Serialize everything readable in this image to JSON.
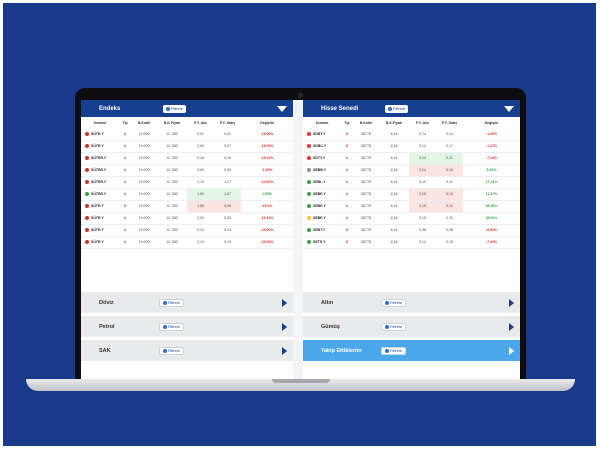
{
  "colors": {
    "background": "#1a3a8c",
    "header": "#173f90",
    "active_bar": "#4aa8ea",
    "negative": "#d62e2e",
    "positive": "#2f9e44"
  },
  "filter_label": "Filtrele",
  "left": {
    "title": "Endeks",
    "columns": [
      "Sembol",
      "Tip",
      "B.Kotik",
      "B.K.Fiyatı",
      "P.Y. Alış",
      "P.Y. Satış",
      "Değişim"
    ],
    "rows": [
      {
        "symbol": "SÜTR.Y",
        "tip": "A",
        "kotik": "10.000",
        "fiyat": "12 .362",
        "alis": "0,01",
        "satis": "0,01",
        "degisim": "-16,00%",
        "dir": "neg",
        "tipdir": "pos",
        "hl": ""
      },
      {
        "symbol": "SÜTR.Y",
        "tip": "A",
        "kotik": "10.000",
        "fiyat": "12 .362",
        "alis": "0,05",
        "satis": "0,07",
        "degisim": "-16,00%",
        "dir": "neg",
        "tipdir": "pos",
        "hl": ""
      },
      {
        "symbol": "SÜTER.Y",
        "tip": "A",
        "kotik": "10.000",
        "fiyat": "12 .362",
        "alis": "0,16",
        "satis": "0,16",
        "degisim": "-16,10%",
        "dir": "neg",
        "tipdir": "pos",
        "hl": ""
      },
      {
        "symbol": "SÜTER.Y",
        "tip": "A",
        "kotik": "10.000",
        "fiyat": "12 .362",
        "alis": "3,00",
        "satis": "0,00",
        "degisim": "-1,60%",
        "dir": "neg",
        "tipdir": "pos",
        "hl": ""
      },
      {
        "symbol": "SÜTER.Y",
        "tip": "A",
        "kotik": "10.000",
        "fiyat": "12 .362",
        "alis": "1,13",
        "satis": "1,17",
        "degisim": "-10,60%",
        "dir": "neg",
        "tipdir": "pos",
        "hl": ""
      },
      {
        "symbol": "SÜTER.Y",
        "tip": "A",
        "kotik": "10.000",
        "fiyat": "12 .362",
        "alis": "1,60",
        "satis": "1,67",
        "degisim": "1,05%",
        "dir": "pos",
        "tipdir": "pos",
        "hl": "green"
      },
      {
        "symbol": "SÜTR.Y",
        "tip": "S",
        "kotik": "10.000",
        "fiyat": "12 .362",
        "alis": "1,56",
        "satis": "0,06",
        "degisim": "-16,0%",
        "dir": "neg",
        "tipdir": "neg",
        "hl": "red"
      },
      {
        "symbol": "SÜTR.Y",
        "tip": "A",
        "kotik": "10.000",
        "fiyat": "12 .362",
        "alis": "0,03",
        "satis": "0,03",
        "degisim": "-15,10%",
        "dir": "neg",
        "tipdir": "pos",
        "hl": ""
      },
      {
        "symbol": "SÜTR.Y",
        "tip": "A",
        "kotik": "10.000",
        "fiyat": "12 .362",
        "alis": "0,10",
        "satis": "0,13",
        "degisim": "-25,00%",
        "dir": "neg",
        "tipdir": "pos",
        "hl": ""
      },
      {
        "symbol": "SÜTR.Y",
        "tip": "A",
        "kotik": "10.000",
        "fiyat": "12 .362",
        "alis": "0,10",
        "satis": "0,19",
        "degisim": "-25,00%",
        "dir": "neg",
        "tipdir": "pos",
        "hl": ""
      }
    ],
    "bars": [
      {
        "title": "Döviz"
      },
      {
        "title": "Petrol"
      },
      {
        "title": "SAK"
      }
    ]
  },
  "right": {
    "title": "Hisse Senedi",
    "columns": [
      "Sembol",
      "Tip",
      "B.Kotik",
      "B.K.Fiyatı",
      "P.Y. Alış",
      "P.Y. Satış",
      "Değişim"
    ],
    "rows": [
      {
        "symbol": "SDBY.Y",
        "dot": "#e53935",
        "tip": "S",
        "kotik": "36778",
        "fiyat": "6,15",
        "alis": "0,74",
        "satis": "0,14",
        "degisim": "-1,20%",
        "dir": "neg",
        "tipdir": "neg",
        "hl": ""
      },
      {
        "symbol": "SDBC.Y",
        "dot": "#e53935",
        "tip": "S",
        "kotik": "36778",
        "fiyat": "6,15",
        "alis": "0,14",
        "satis": "0,17",
        "degisim": "-1,47%",
        "dir": "neg",
        "tipdir": "neg",
        "hl": ""
      },
      {
        "symbol": "SDTY.Y",
        "dot": "#e53935",
        "tip": "A",
        "kotik": "36778",
        "fiyat": "6,15",
        "alis": "0,14",
        "satis": "0,11",
        "degisim": "-7,10%",
        "dir": "neg",
        "tipdir": "pos",
        "hl": "green"
      },
      {
        "symbol": "SEBB.Y",
        "dot": "#8e8e8e",
        "tip": "A",
        "kotik": "36778",
        "fiyat": "6,15",
        "alis": "0,14",
        "satis": "0,16",
        "degisim": "5,30%",
        "dir": "pos",
        "tipdir": "pos",
        "hl": "red"
      },
      {
        "symbol": "SEBL.Y",
        "dot": "#43a047",
        "tip": "A",
        "kotik": "36778",
        "fiyat": "6,15",
        "alis": "0,10",
        "satis": "0,11",
        "degisim": "17,14%",
        "dir": "pos",
        "tipdir": "pos",
        "hl": ""
      },
      {
        "symbol": "SEBE.Y",
        "dot": "#43a047",
        "tip": "A",
        "kotik": "36778",
        "fiyat": "6,15",
        "alis": "0,15",
        "satis": "0,10",
        "degisim": "11,17%",
        "dir": "pos",
        "tipdir": "pos",
        "hl": "red"
      },
      {
        "symbol": "SEBE.Y",
        "dot": "#43a047",
        "tip": "A",
        "kotik": "36778",
        "fiyat": "6,15",
        "alis": "0,15",
        "satis": "0,10",
        "degisim": "25,28%",
        "dir": "pos",
        "tipdir": "pos",
        "hl": "red"
      },
      {
        "symbol": "SEBE.Y",
        "dot": "#fbc02d",
        "tip": "A",
        "kotik": "36778",
        "fiyat": "6,15",
        "alis": "0,15",
        "satis": "0,11",
        "degisim": "25,00%",
        "dir": "pos",
        "tipdir": "pos",
        "hl": ""
      },
      {
        "symbol": "SEBT.Y",
        "dot": "#43a047",
        "tip": "S",
        "kotik": "36778",
        "fiyat": "6,15",
        "alis": "0,36",
        "satis": "0,38",
        "degisim": "-8,50%",
        "dir": "neg",
        "tipdir": "neg",
        "hl": ""
      },
      {
        "symbol": "SETS.Y",
        "dot": "#43a047",
        "tip": "S",
        "kotik": "36778",
        "fiyat": "6,15",
        "alis": "0,14",
        "satis": "0,15",
        "degisim": "-7,40%",
        "dir": "neg",
        "tipdir": "neg",
        "hl": ""
      }
    ],
    "bars": [
      {
        "title": "Altın"
      },
      {
        "title": "Gümüş"
      },
      {
        "title": "Takip Ettiklerim"
      }
    ]
  }
}
